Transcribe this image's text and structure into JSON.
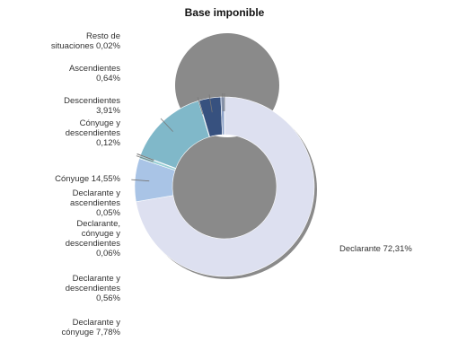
{
  "chart_data": {
    "type": "pie",
    "variant": "donut",
    "title": "Base imponible",
    "legend": "none",
    "slices": [
      {
        "label": "Declarante 72,31%",
        "value": 72.31,
        "color": "#dde0f0",
        "label_lines": [
          "Declarante 72,31%"
        ]
      },
      {
        "label": "Declarante y cónyuge 7,78%",
        "value": 7.78,
        "color": "#a9c4e6",
        "label_lines": [
          "Declarante y",
          "cónyuge 7,78%"
        ]
      },
      {
        "label": "Declarante y descendientes 0,56%",
        "value": 0.56,
        "color": "#9ad0d6",
        "label_lines": [
          "Declarante y",
          "descendientes",
          "0,56%"
        ]
      },
      {
        "label": "Declarante, cónyuge y descendientes 0,06%",
        "value": 0.06,
        "color": "#6a7fb0",
        "label_lines": [
          "Declarante,",
          "cónyuge y",
          "descendientes",
          "0,06%"
        ]
      },
      {
        "label": "Declarante y ascendientes 0,05%",
        "value": 0.05,
        "color": "#c0c9e6",
        "label_lines": [
          "Declarante y",
          "ascendientes",
          "0,05%"
        ]
      },
      {
        "label": "Cónyuge 14,55%",
        "value": 14.55,
        "color": "#80b8c9",
        "label_lines": [
          "Cónyuge 14,55%"
        ]
      },
      {
        "label": "Cónyuge y descendientes 0,12%",
        "value": 0.12,
        "color": "#5a8fb3",
        "label_lines": [
          "Cónyuge y",
          "descendientes",
          "0,12%"
        ]
      },
      {
        "label": "Descendientes 3,91%",
        "value": 3.91,
        "color": "#37517f",
        "label_lines": [
          "Descendientes",
          "3,91%"
        ]
      },
      {
        "label": "Ascendientes 0,64%",
        "value": 0.64,
        "color": "#8fa3c9",
        "label_lines": [
          "Ascendientes",
          "0,64%"
        ]
      },
      {
        "label": "Resto de situaciones 0,02%",
        "value": 0.02,
        "color": "#c8cfe0",
        "label_lines": [
          "Resto de",
          "situaciones 0,02%"
        ]
      }
    ]
  }
}
